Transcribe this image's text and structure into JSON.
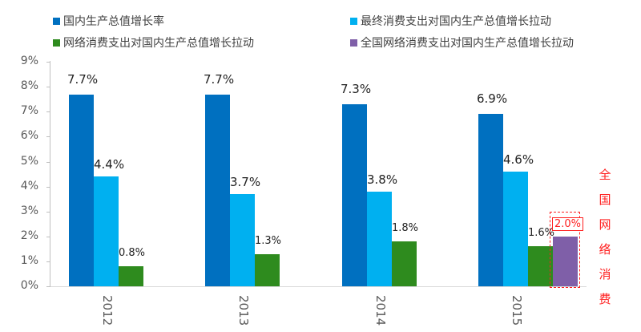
{
  "legend": {
    "items": [
      {
        "label": "国内生产总值增长率",
        "color": "#0070C0"
      },
      {
        "label": "最终消费支出对国内生产总值增长拉动",
        "color": "#00B0F0"
      },
      {
        "label": "网络消费支出对国内生产总值增长拉动",
        "color": "#2E8B1E"
      },
      {
        "label": "全国网络消费支出对国内生产总值增长拉动",
        "color": "#7F5FA8"
      }
    ]
  },
  "axis": {
    "y_ticks": [
      "0%",
      "1%",
      "2%",
      "3%",
      "4%",
      "5%",
      "6%",
      "7%",
      "8%",
      "9%"
    ]
  },
  "years": [
    "2012",
    "2013",
    "2014",
    "2015"
  ],
  "labels": {
    "2012": [
      "7.7%",
      "4.4%",
      "0.8%"
    ],
    "2013": [
      "7.7%",
      "3.7%",
      "1.3%"
    ],
    "2014": [
      "7.3%",
      "3.8%",
      "1.8%"
    ],
    "2015": [
      "6.9%",
      "4.6%",
      "1.6%",
      "2.0%"
    ]
  },
  "annotation": {
    "value": "2.0%",
    "text": "全国网络消费",
    "chars": [
      "全",
      "国",
      "网",
      "络",
      "消",
      "费"
    ],
    "color": "#FF2020"
  },
  "chart_data": {
    "type": "bar",
    "title": "",
    "xlabel": "",
    "ylabel": "",
    "categories": [
      "2012",
      "2013",
      "2014",
      "2015"
    ],
    "series": [
      {
        "name": "国内生产总值增长率",
        "values": [
          7.7,
          7.7,
          7.3,
          6.9
        ]
      },
      {
        "name": "最终消费支出对国内生产总值增长拉动",
        "values": [
          4.4,
          3.7,
          3.8,
          4.6
        ]
      },
      {
        "name": "网络消费支出对国内生产总值增长拉动",
        "values": [
          0.8,
          1.3,
          1.8,
          1.6
        ]
      },
      {
        "name": "全国网络消费支出对国内生产总值增长拉动",
        "values": [
          null,
          null,
          null,
          2.0
        ]
      }
    ],
    "ylim": [
      0,
      9
    ],
    "y_unit": "%",
    "grid": false,
    "legend_position": "top",
    "annotations": [
      "全国网络消费 2.0% (2015, dashed red box)"
    ]
  }
}
